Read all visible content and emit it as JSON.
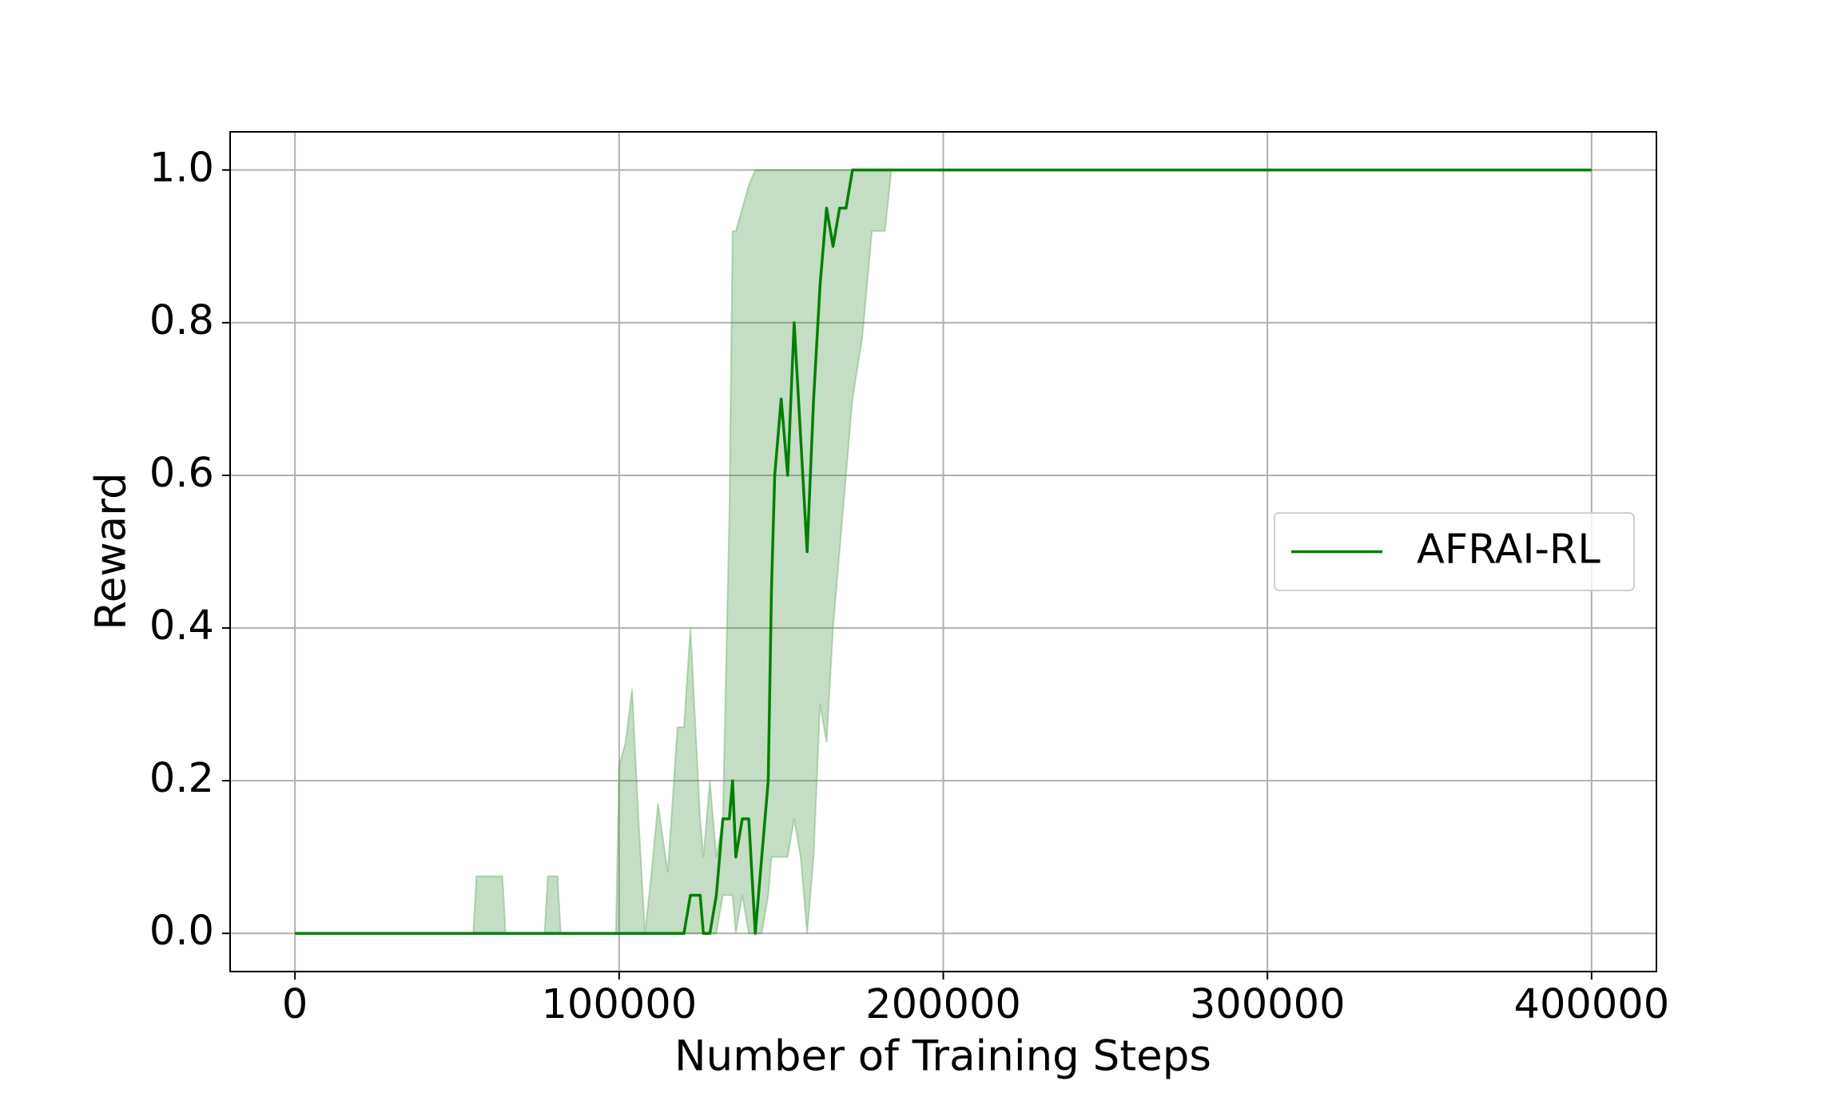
{
  "chart_data": {
    "type": "line",
    "xlabel": "Number of Training Steps",
    "ylabel": "Reward",
    "x": [
      0,
      55000,
      56000,
      59000,
      60000,
      64000,
      65000,
      77000,
      78000,
      81000,
      82000,
      99000,
      100000,
      102000,
      104000,
      106000,
      108000,
      110000,
      112000,
      115000,
      118000,
      120000,
      122000,
      125000,
      126000,
      128000,
      130000,
      132000,
      134000,
      135000,
      136000,
      138000,
      140000,
      142000,
      144000,
      146000,
      147000,
      148000,
      150000,
      152000,
      154000,
      156000,
      158000,
      160000,
      162000,
      164000,
      166000,
      168000,
      170000,
      172000,
      175000,
      178000,
      180000,
      182000,
      184000,
      186000,
      400000
    ],
    "series": [
      {
        "name": "AFRAI-RL",
        "color": "#008000",
        "band_color": "#3a8f3a",
        "values": [
          0,
          0,
          0,
          0,
          0,
          0,
          0,
          0,
          0,
          0,
          0,
          0,
          0,
          0,
          0,
          0,
          0,
          0,
          0,
          0,
          0,
          0,
          0.05,
          0.05,
          0,
          0,
          0.05,
          0.15,
          0.15,
          0.2,
          0.1,
          0.15,
          0.15,
          0,
          0.1,
          0.2,
          0.45,
          0.6,
          0.7,
          0.6,
          0.8,
          0.65,
          0.5,
          0.7,
          0.85,
          0.95,
          0.9,
          0.95,
          0.95,
          1,
          1,
          1,
          1,
          1,
          1,
          1,
          1
        ],
        "lower": [
          0,
          0,
          0,
          0,
          0,
          0,
          0,
          0,
          0,
          0,
          0,
          0,
          0,
          0,
          0,
          0,
          0,
          0,
          0,
          0,
          0,
          0,
          0,
          0,
          0,
          0,
          0,
          0.05,
          0.05,
          0.05,
          0,
          0.05,
          0,
          0,
          0,
          0.05,
          0.1,
          0.1,
          0.1,
          0.1,
          0.15,
          0.1,
          0,
          0.1,
          0.3,
          0.25,
          0.4,
          0.5,
          0.6,
          0.7,
          0.78,
          0.92,
          0.92,
          0.92,
          1,
          1,
          1
        ],
        "upper": [
          0,
          0,
          0.075,
          0.075,
          0.075,
          0.075,
          0,
          0,
          0.075,
          0.075,
          0,
          0,
          0.22,
          0.25,
          0.32,
          0.15,
          0,
          0.08,
          0.17,
          0.08,
          0.27,
          0.27,
          0.4,
          0.15,
          0.1,
          0.2,
          0.1,
          0.15,
          0.55,
          0.92,
          0.92,
          0.95,
          0.98,
          1,
          1,
          1,
          1,
          1,
          1,
          1,
          1,
          1,
          1,
          1,
          1,
          1,
          1,
          1,
          1,
          1,
          1,
          1,
          1,
          1,
          1,
          1,
          1
        ]
      }
    ],
    "xlim": [
      -20000,
      420000
    ],
    "ylim": [
      -0.05,
      1.05
    ],
    "xticks": [
      0,
      100000,
      200000,
      300000,
      400000
    ],
    "yticks": [
      {
        "value": 0,
        "label": "0.0"
      },
      0.2,
      0.4,
      0.6,
      0.8,
      {
        "value": 1,
        "label": "1.0"
      }
    ],
    "grid": true,
    "legend": "center right"
  }
}
